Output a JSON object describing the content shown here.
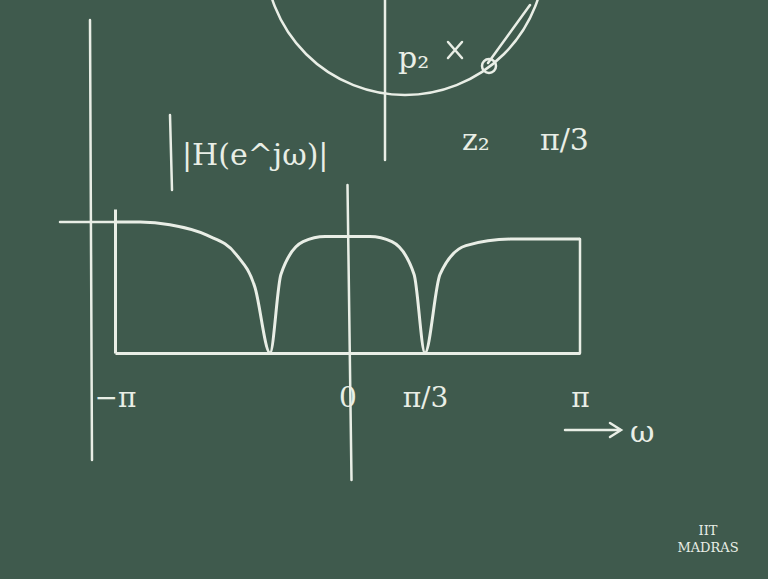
{
  "chart_data": {
    "type": "line",
    "y_label": "|H(e^jω)|",
    "x_label": "ω",
    "x": [
      -3.14159,
      -2.8,
      -2.4,
      -1.9,
      -1.5,
      -1.25,
      -1.047,
      -0.9,
      -0.6,
      -0.3,
      0,
      0.3,
      0.6,
      0.9,
      1.047,
      1.25,
      1.6,
      2.2,
      2.8,
      3.14159
    ],
    "values": [
      1.0,
      1.0,
      0.98,
      0.9,
      0.75,
      0.5,
      0,
      0.6,
      0.85,
      0.89,
      0.89,
      0.89,
      0.85,
      0.6,
      0,
      0.6,
      0.82,
      0.87,
      0.87,
      0.87
    ],
    "color": "#e9eee6",
    "xlim": [
      -3.14159,
      3.14159
    ],
    "xticks": [
      {
        "value": -3.14159,
        "label": "−π"
      },
      0,
      {
        "value": 1.047,
        "label": "π/3"
      },
      {
        "value": 3.14159,
        "label": "π"
      }
    ],
    "ylim": [
      0,
      1.1
    ],
    "tick_labels": "x",
    "grid": false,
    "annotations": [
      "p₂",
      "z₂",
      "π/3",
      "IIT",
      "MADRAS"
    ]
  }
}
